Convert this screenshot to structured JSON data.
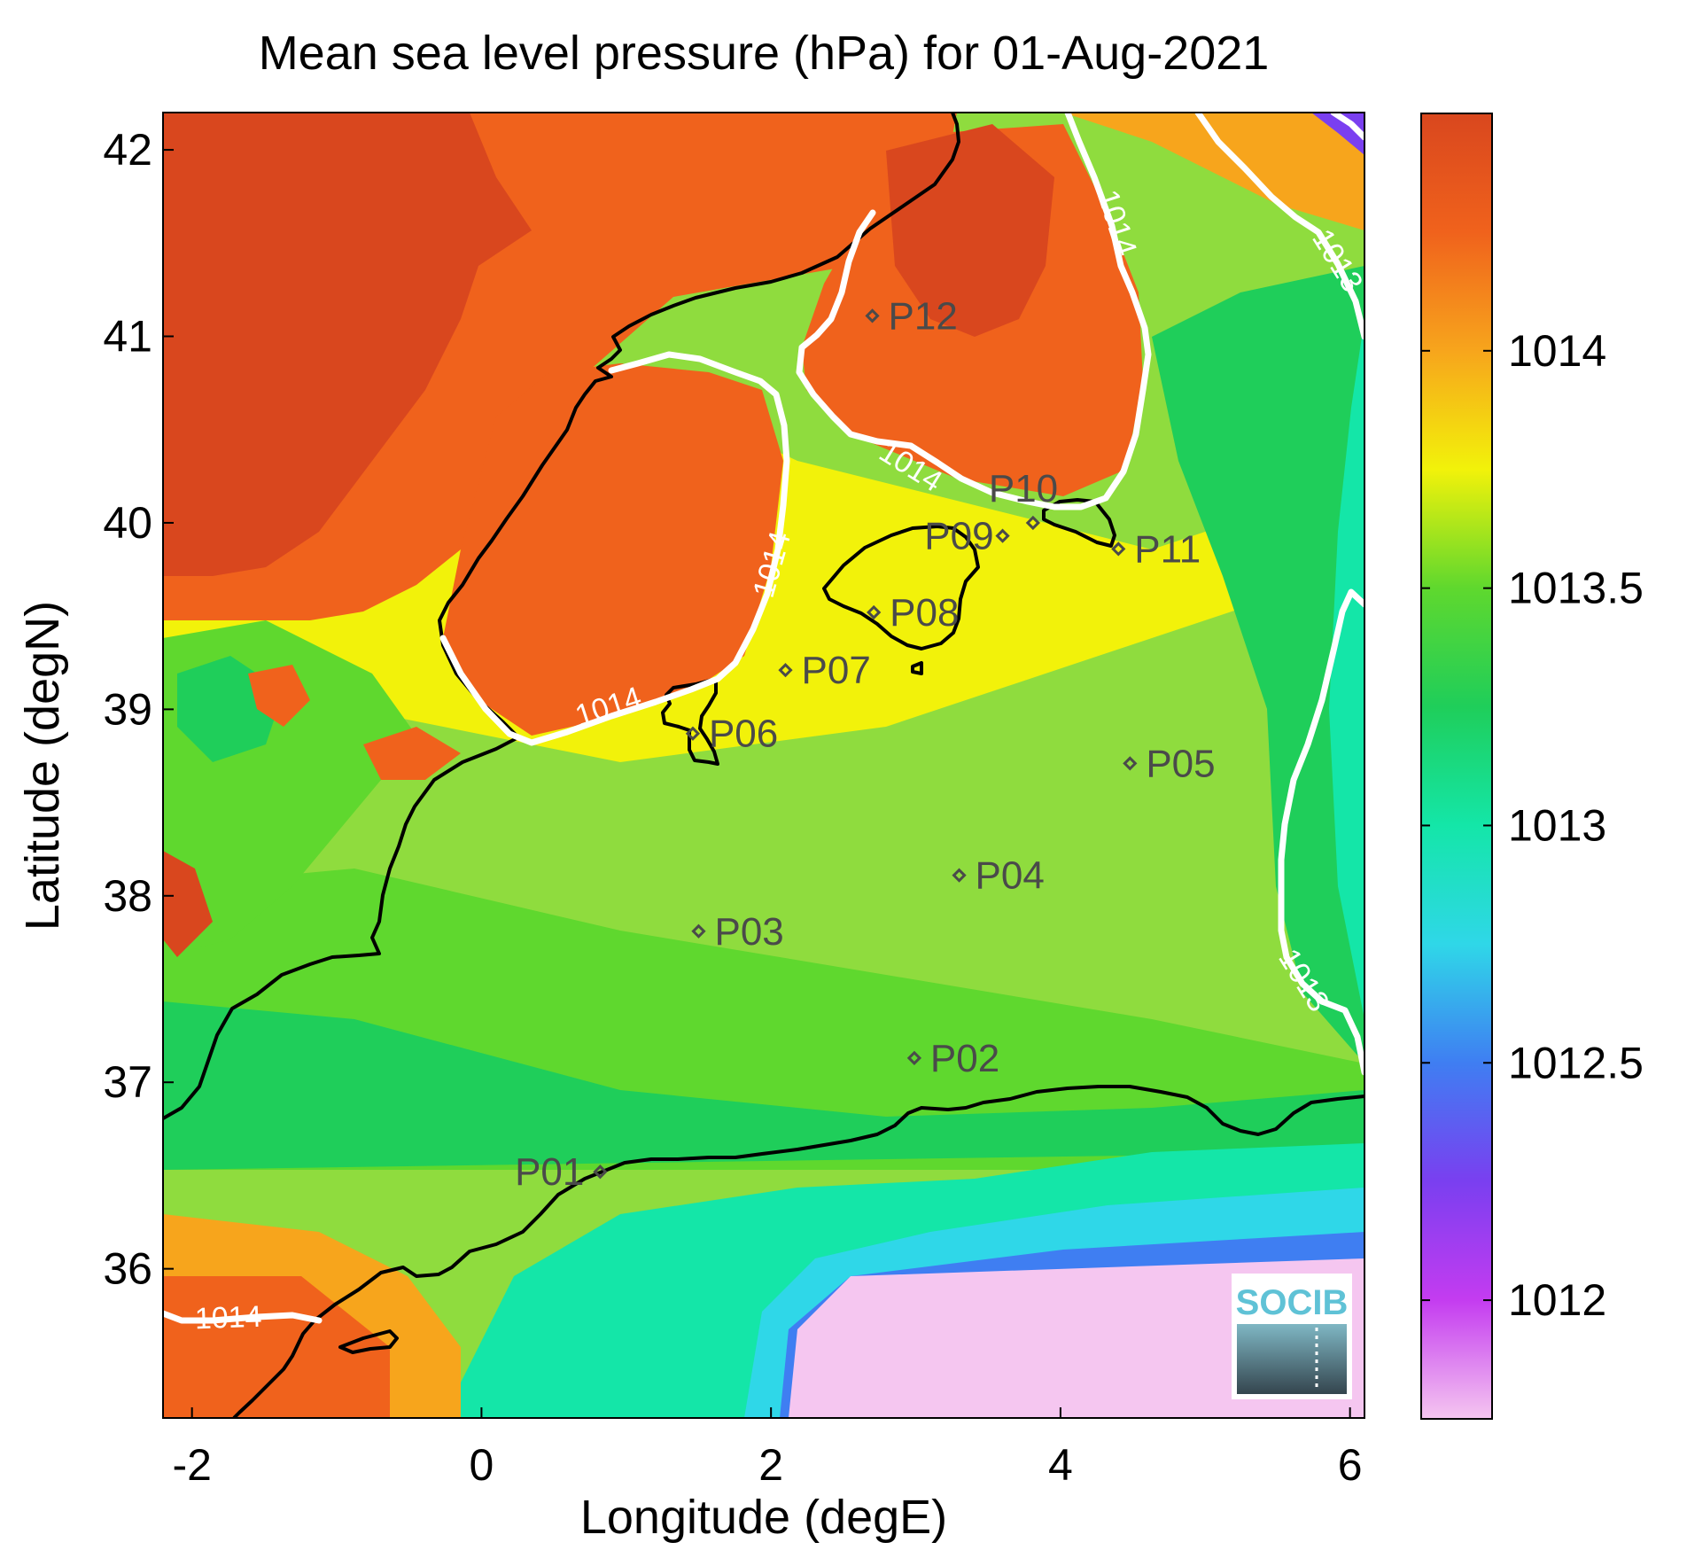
{
  "chart_data": {
    "type": "heatmap",
    "title": "Mean sea level pressure (hPa) for 01-Aug-2021",
    "xlabel": "Longitude (degE)",
    "ylabel": "Latitude (degN)",
    "xlim": [
      -2.2,
      6.1
    ],
    "ylim": [
      35.2,
      42.2
    ],
    "xticks": [
      -2,
      0,
      2,
      4,
      6
    ],
    "yticks": [
      36,
      37,
      38,
      39,
      40,
      41,
      42
    ],
    "colorbar": {
      "range": [
        1011.75,
        1014.5
      ],
      "ticks": [
        1012,
        1012.5,
        1013,
        1013.5,
        1014
      ],
      "stops": [
        {
          "v": 1011.75,
          "c": "#f5c6f0"
        },
        {
          "v": 1012.0,
          "c": "#c43cf0"
        },
        {
          "v": 1012.25,
          "c": "#7a3ff0"
        },
        {
          "v": 1012.5,
          "c": "#3f7ef2"
        },
        {
          "v": 1012.75,
          "c": "#2fd7e8"
        },
        {
          "v": 1013.0,
          "c": "#14e6a8"
        },
        {
          "v": 1013.25,
          "c": "#1fce5a"
        },
        {
          "v": 1013.5,
          "c": "#5fd82e"
        },
        {
          "v": 1013.75,
          "c": "#f2f20a"
        },
        {
          "v": 1014.0,
          "c": "#f7a51c"
        },
        {
          "v": 1014.25,
          "c": "#f0621c"
        },
        {
          "v": 1014.5,
          "c": "#d9471e"
        }
      ]
    },
    "contour_labels": [
      "1014",
      "1014",
      "1014",
      "1014",
      "1014",
      "1013",
      "1013"
    ],
    "stations": [
      {
        "name": "P01",
        "lon": 0.82,
        "lat": 36.52
      },
      {
        "name": "P02",
        "lon": 2.99,
        "lat": 37.13
      },
      {
        "name": "P03",
        "lon": 1.5,
        "lat": 37.81
      },
      {
        "name": "P04",
        "lon": 3.3,
        "lat": 38.11
      },
      {
        "name": "P05",
        "lon": 4.48,
        "lat": 38.71
      },
      {
        "name": "P06",
        "lon": 1.46,
        "lat": 38.87
      },
      {
        "name": "P07",
        "lon": 2.1,
        "lat": 39.21
      },
      {
        "name": "P08",
        "lon": 2.71,
        "lat": 39.52
      },
      {
        "name": "P09",
        "lon": 3.6,
        "lat": 39.93
      },
      {
        "name": "P10",
        "lon": 3.81,
        "lat": 40.0
      },
      {
        "name": "P11",
        "lon": 4.4,
        "lat": 39.86
      },
      {
        "name": "P12",
        "lon": 2.7,
        "lat": 41.11
      }
    ]
  },
  "logo": {
    "text": "SOCIB"
  }
}
